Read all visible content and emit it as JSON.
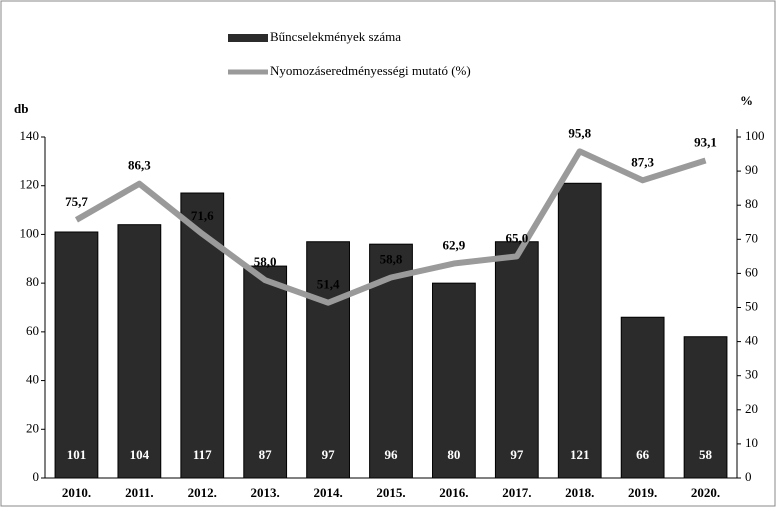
{
  "chart_data": {
    "type": "bar",
    "categories": [
      "2010.",
      "2011.",
      "2012.",
      "2013.",
      "2014.",
      "2015.",
      "2016.",
      "2017.",
      "2018.",
      "2019.",
      "2020."
    ],
    "series": [
      {
        "name": "Bűncselekmények száma",
        "type": "bar",
        "color": "#2b2b2b",
        "values": [
          101,
          104,
          117,
          87,
          97,
          96,
          80,
          97,
          121,
          66,
          58
        ]
      },
      {
        "name": "Nyomozáseredményességi mutató (%)",
        "type": "line",
        "axis": "y2",
        "color": "#9a9a9a",
        "values": [
          75.7,
          86.3,
          71.6,
          58.0,
          51.4,
          58.8,
          62.9,
          65.0,
          95.8,
          87.3,
          93.1
        ],
        "value_labels": [
          "75,7",
          "86,3",
          "71,6",
          "58,0",
          "51,4",
          "58,8",
          "62,9",
          "65,0",
          "95,8",
          "87,3",
          "93,1"
        ]
      }
    ],
    "ylabel": "db",
    "y2label": "%",
    "ylim": [
      0,
      140
    ],
    "yticks": [
      0,
      20,
      40,
      60,
      80,
      100,
      120,
      140
    ],
    "y2lim": [
      0,
      100
    ],
    "y2ticks": [
      0,
      10,
      20,
      30,
      40,
      50,
      60,
      70,
      80,
      90,
      100
    ]
  }
}
